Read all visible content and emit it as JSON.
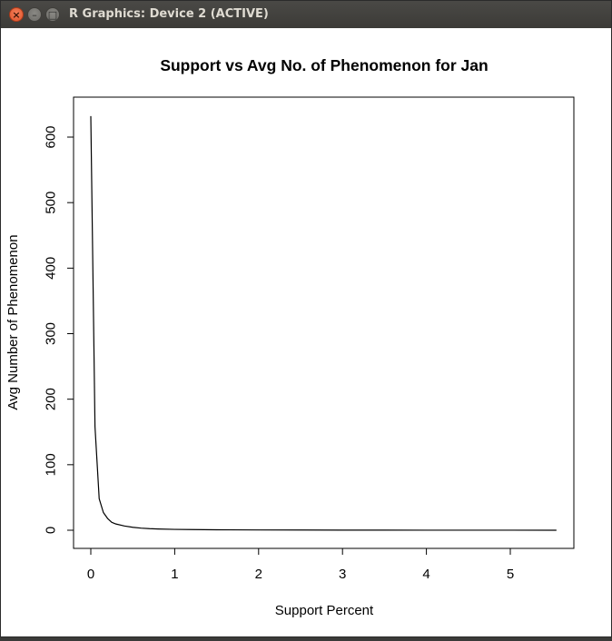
{
  "window": {
    "title": "R Graphics: Device 2 (ACTIVE)",
    "buttons": {
      "close_icon": "close-icon",
      "minimize_icon": "minimize-icon",
      "maximize_icon": "maximize-icon"
    }
  },
  "chart_data": {
    "type": "line",
    "title": "Support vs Avg No. of Phenomenon for Jan",
    "xlabel": "Support Percent",
    "ylabel": "Avg Number of Phenomenon",
    "xlim": [
      0,
      5.55
    ],
    "ylim": [
      0,
      632
    ],
    "x_ticks": [
      0,
      1,
      2,
      3,
      4,
      5
    ],
    "y_ticks": [
      0,
      100,
      200,
      300,
      400,
      500,
      600
    ],
    "grid": false,
    "line_color": "#000000",
    "series": [
      {
        "x": [
          0.0,
          0.05,
          0.1,
          0.15,
          0.2,
          0.25,
          0.3,
          0.4,
          0.5,
          0.6,
          0.7,
          0.8,
          1.0,
          1.2,
          1.5,
          2.0,
          2.5,
          3.0,
          3.5,
          4.0,
          4.5,
          5.0,
          5.55
        ],
        "y": [
          632,
          158,
          48,
          27,
          18,
          12,
          9.5,
          6.5,
          4.5,
          3.2,
          2.4,
          1.9,
          1.3,
          1.0,
          0.7,
          0.45,
          0.3,
          0.2,
          0.15,
          0.1,
          0.08,
          0.05,
          0.03
        ]
      }
    ]
  }
}
